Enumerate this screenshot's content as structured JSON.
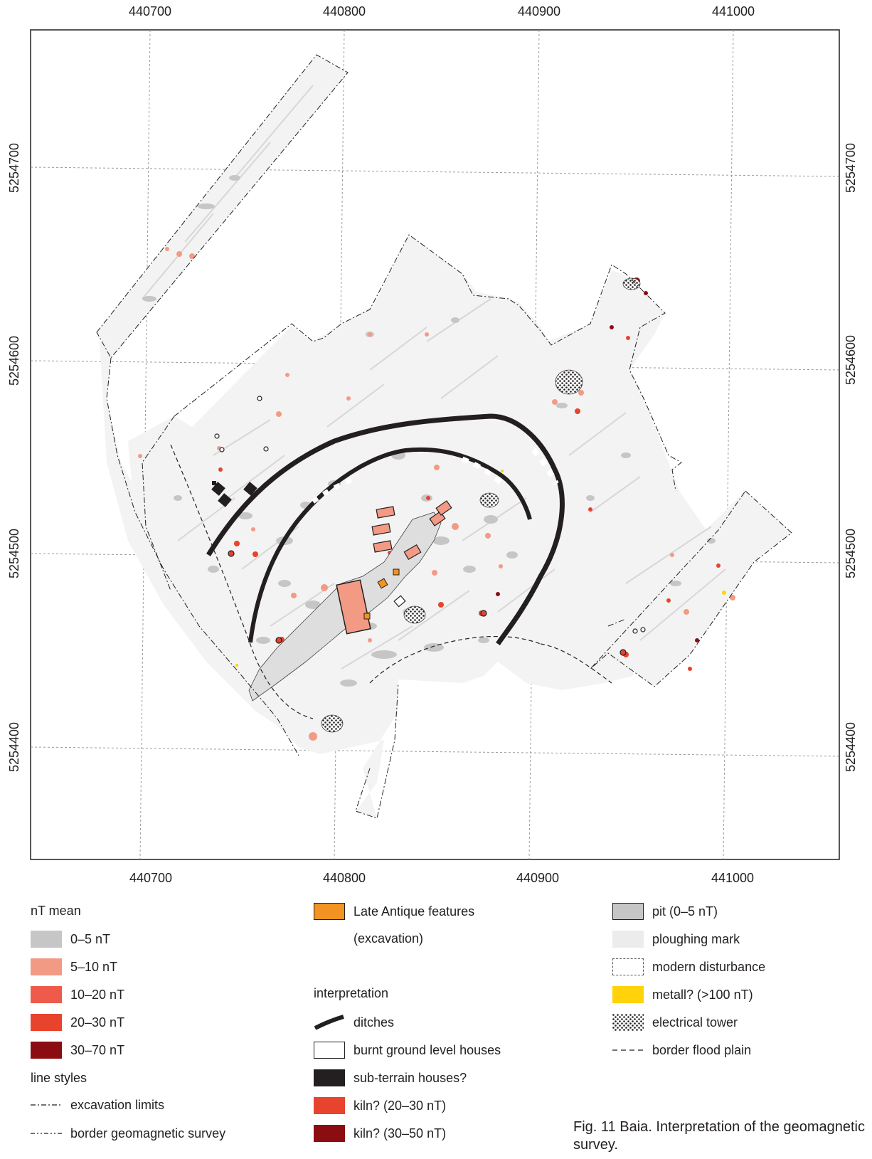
{
  "map": {
    "x_ticks": [
      "440700",
      "440800",
      "440900",
      "441000"
    ],
    "y_ticks": [
      "5254700",
      "5254600",
      "5254500",
      "5254400"
    ]
  },
  "legend": {
    "nt_mean": {
      "title": "nT mean",
      "items": [
        {
          "label": "0–5 nT",
          "color": "#c6c6c6"
        },
        {
          "label": "5–10 nT",
          "color": "#f39a84"
        },
        {
          "label": "10–20 nT",
          "color": "#ef5b4b"
        },
        {
          "label": "20–30 nT",
          "color": "#e8432d"
        },
        {
          "label": "30–70 nT",
          "color": "#8b0d11"
        }
      ]
    },
    "line_styles": {
      "title": "line styles",
      "items": [
        {
          "label": "excavation limits"
        },
        {
          "label": "border geomagnetic survey"
        }
      ]
    },
    "late_antique": {
      "label": "Late Antique features",
      "sublabel": "(excavation)",
      "color": "#f39321"
    },
    "interpretation": {
      "title": "interpretation",
      "items": [
        {
          "label": "ditches",
          "icon": "ditch-stroke-icon"
        },
        {
          "label": "burnt ground level houses",
          "color": "#ffffff"
        },
        {
          "label": "sub-terrain houses?",
          "color": "#231f20"
        },
        {
          "label": "kiln? (20–30 nT)",
          "color": "#e8432d"
        },
        {
          "label": "kiln? (30–50 nT)",
          "color": "#8b0d11"
        }
      ]
    },
    "other": {
      "items": [
        {
          "label": "pit (0–5 nT)",
          "color": "#c6c6c6"
        },
        {
          "label": "ploughing mark",
          "color": "#ececec"
        },
        {
          "label": "modern disturbance",
          "color": "#ffffff"
        },
        {
          "label": "metall? (>100 nT)",
          "color": "#ffd20a"
        },
        {
          "label": "electrical tower",
          "icon": "dot-pattern-icon"
        },
        {
          "label": "border flood plain",
          "icon": "dashed-line-icon"
        }
      ]
    }
  },
  "caption": "Fig. 11 Baia. Interpretation of the geo­magnetic survey."
}
